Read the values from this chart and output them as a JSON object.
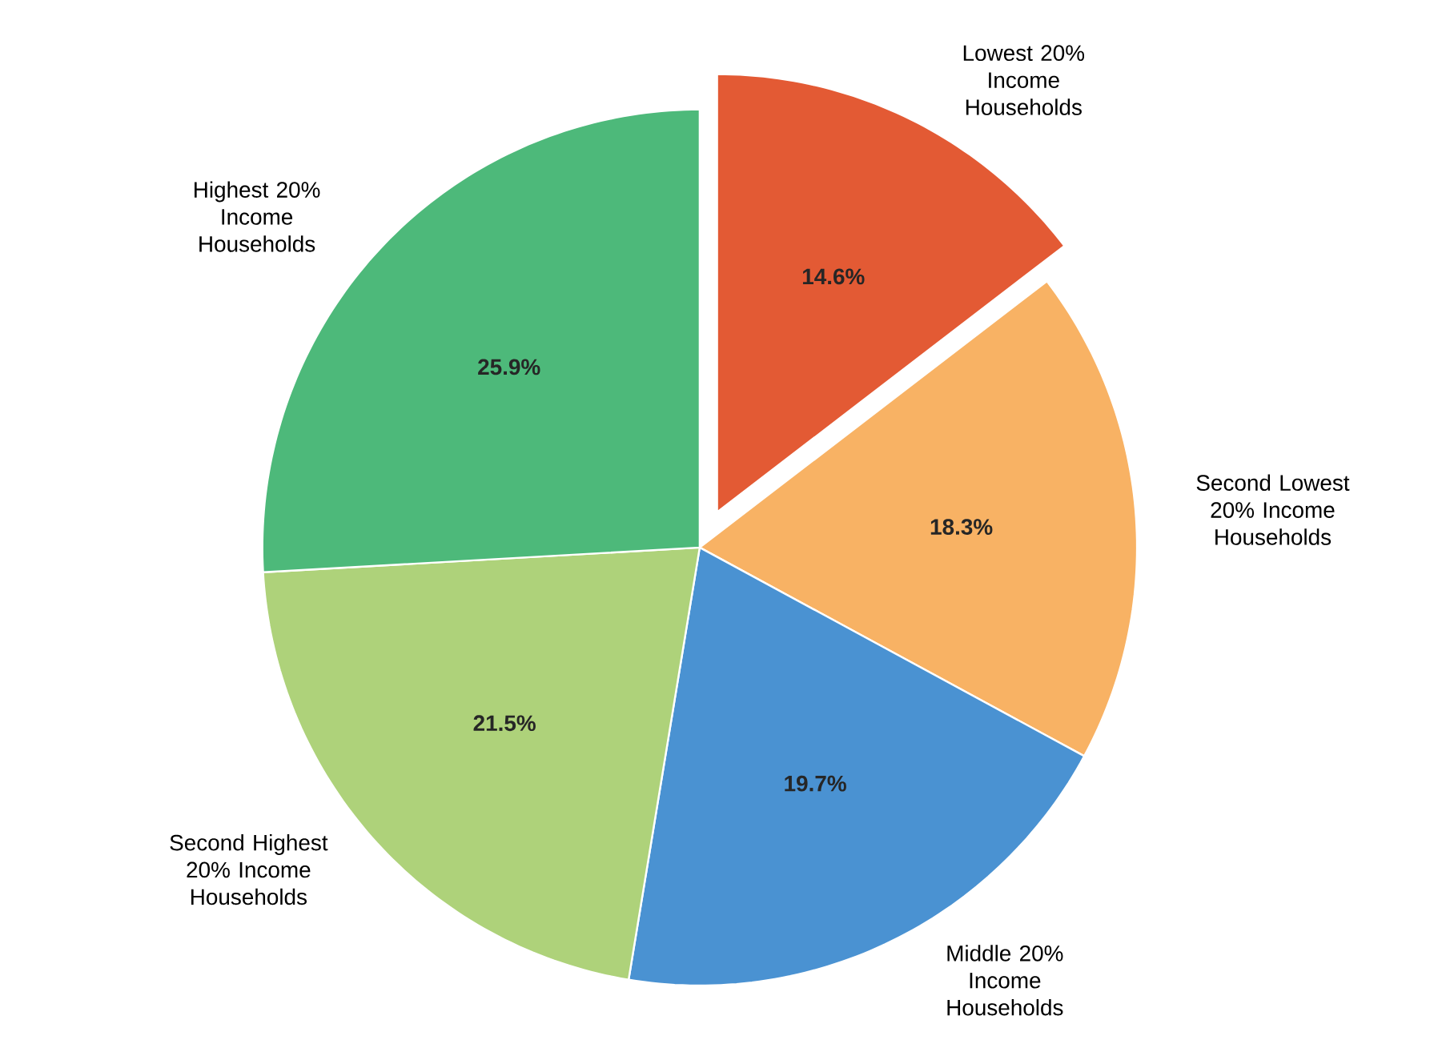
{
  "chart_data": {
    "type": "pie",
    "categories": [
      "Lowest 20% Income Households",
      "Second Lowest 20% Income Households",
      "Middle 20% Income Households",
      "Second Highest 20% Income Households",
      "Highest 20% Income Households"
    ],
    "values": [
      14.6,
      18.3,
      19.7,
      21.5,
      25.9
    ],
    "value_labels": [
      "14.6%",
      "18.3%",
      "19.7%",
      "21.5%",
      "25.9%"
    ],
    "colors": [
      "#e35a34",
      "#f8b264",
      "#4a92d2",
      "#aed27a",
      "#4db97a"
    ]
  }
}
